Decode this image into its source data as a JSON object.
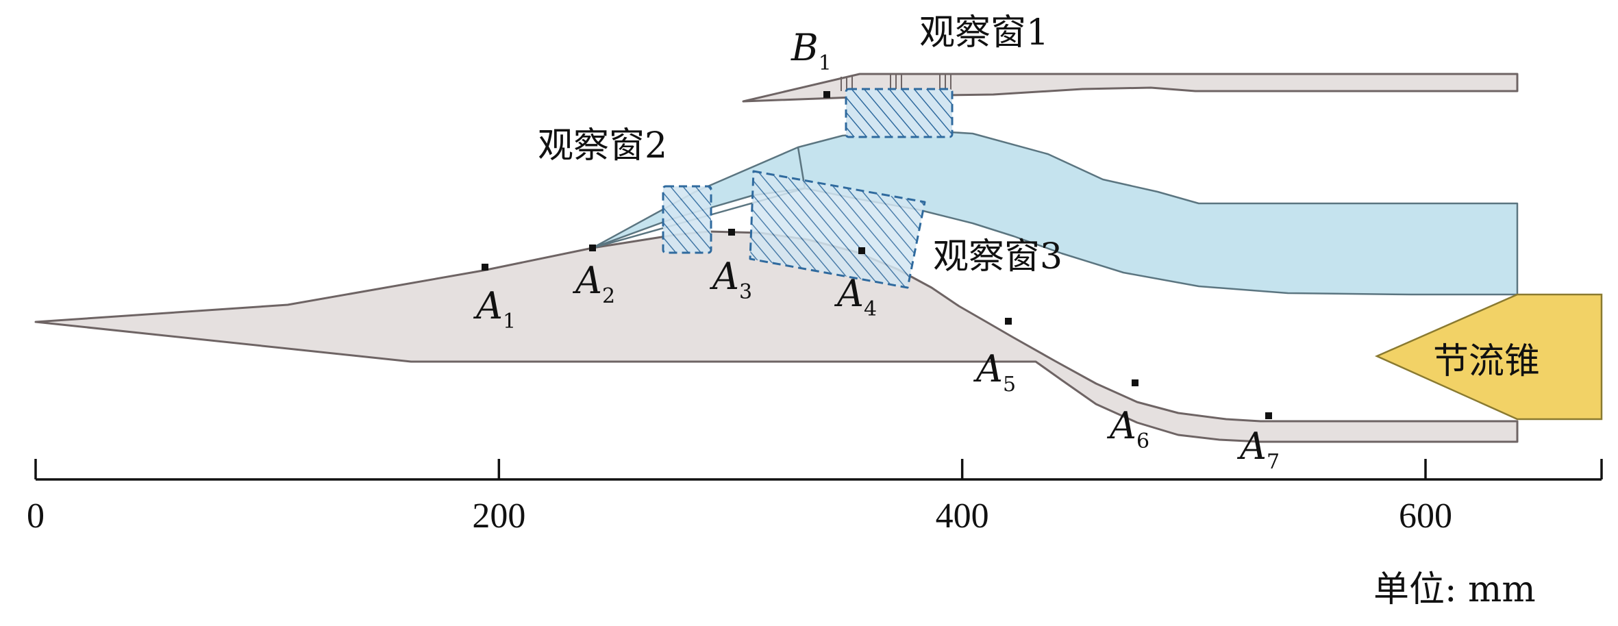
{
  "colors": {
    "ramp": "#E5E0DF",
    "ramp_stroke": "#6E6464",
    "duct": "#C5E3EE",
    "duct_stroke": "#5B7580",
    "window": "#2F6A9E",
    "cone": "#F2D266",
    "cone_stroke": "#8A7A30",
    "axis": "#111111"
  },
  "windows": [
    {
      "id": "1",
      "label": "观察窗1"
    },
    {
      "id": "2",
      "label": "观察窗2"
    },
    {
      "id": "3",
      "label": "观察窗3"
    }
  ],
  "points": [
    {
      "letter": "B",
      "sub": "1"
    },
    {
      "letter": "A",
      "sub": "1"
    },
    {
      "letter": "A",
      "sub": "2"
    },
    {
      "letter": "A",
      "sub": "3"
    },
    {
      "letter": "A",
      "sub": "4"
    },
    {
      "letter": "A",
      "sub": "5"
    },
    {
      "letter": "A",
      "sub": "6"
    },
    {
      "letter": "A",
      "sub": "7"
    }
  ],
  "throttle_cone": {
    "label": "节流锥"
  },
  "axis": {
    "unit_label": "单位: mm",
    "ticks": [
      {
        "value": 0,
        "label": "0"
      },
      {
        "value": 200,
        "label": "200"
      },
      {
        "value": 400,
        "label": "400"
      },
      {
        "value": 600,
        "label": "600"
      }
    ],
    "range": [
      0,
      675
    ]
  }
}
